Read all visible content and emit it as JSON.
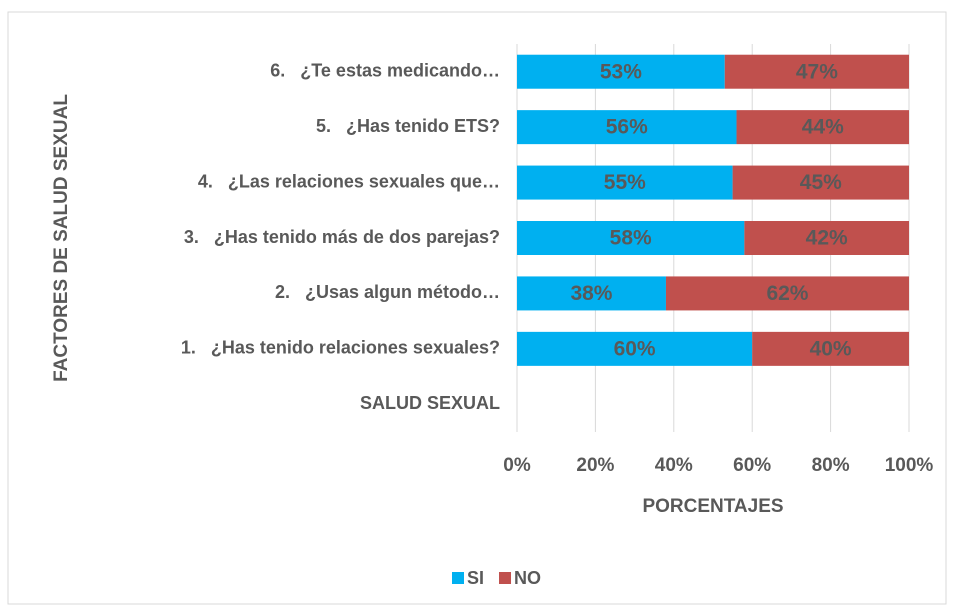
{
  "chart_data": {
    "type": "stacked_barh",
    "x_label": "PORCENTAJES",
    "y_label": "FACTORES DE SALUD SEXUAL",
    "categories": [
      "SALUD SEXUAL",
      "1.   ¿Has tenido relaciones sexuales?",
      "2.   ¿Usas algun método…",
      "3.   ¿Has tenido más de dos parejas?",
      "4.   ¿Las relaciones sexuales que…",
      "5.   ¿Has tenido ETS?",
      "6.   ¿Te estas medicando…"
    ],
    "series": [
      {
        "name": "SI",
        "color": "#00b0f0",
        "values": [
          null,
          60,
          38,
          58,
          55,
          56,
          53
        ],
        "value_labels": [
          null,
          "60%",
          "38%",
          "58%",
          "55%",
          "56%",
          "53%"
        ]
      },
      {
        "name": "NO",
        "color": "#c0504d",
        "values": [
          null,
          40,
          62,
          42,
          45,
          44,
          47
        ],
        "value_labels": [
          null,
          "40%",
          "62%",
          "42%",
          "45%",
          "44%",
          "47%"
        ]
      }
    ],
    "xlim": [
      0,
      100
    ],
    "xticks": [
      {
        "value": 0,
        "label": "0%"
      },
      {
        "value": 20,
        "label": "20%"
      },
      {
        "value": 40,
        "label": "40%"
      },
      {
        "value": 60,
        "label": "60%"
      },
      {
        "value": 80,
        "label": "80%"
      },
      {
        "value": 100,
        "label": "100%"
      }
    ],
    "grid": true,
    "legend": "bottom"
  }
}
